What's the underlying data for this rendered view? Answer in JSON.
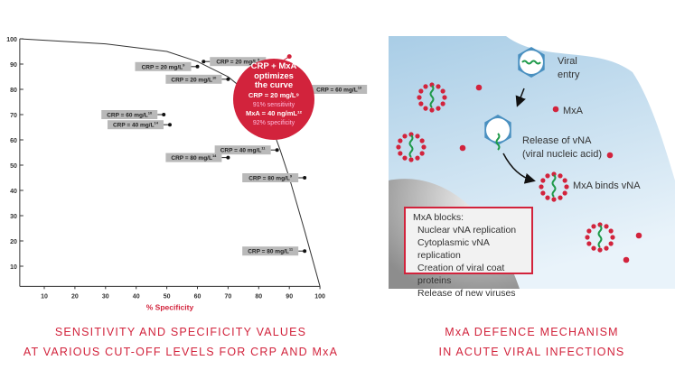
{
  "chart_data": {
    "type": "scatter",
    "xlabel": "% Specificity",
    "ylabel": "",
    "xlim": [
      2,
      100
    ],
    "ylim": [
      2,
      100
    ],
    "xticks": [
      10,
      20,
      30,
      40,
      50,
      60,
      70,
      80,
      90,
      100
    ],
    "yticks": [
      10,
      20,
      30,
      40,
      50,
      60,
      70,
      80,
      90,
      100
    ],
    "curve": [
      [
        2,
        100
      ],
      [
        30,
        98
      ],
      [
        50,
        95
      ],
      [
        60,
        91
      ],
      [
        70,
        85
      ],
      [
        78,
        77
      ],
      [
        84,
        66
      ],
      [
        87,
        56
      ],
      [
        90,
        45
      ],
      [
        95,
        24
      ],
      [
        100,
        2
      ]
    ],
    "points": [
      {
        "label": "CRP = 20 mg/L",
        "ref": "9",
        "x": 62,
        "y": 91,
        "side": "right"
      },
      {
        "label": "CRP = 20 mg/L",
        "ref": "9",
        "x": 60,
        "y": 89,
        "side": "left"
      },
      {
        "label": "CRP = 20 mg/L",
        "ref": "10",
        "x": 70,
        "y": 84,
        "side": "left"
      },
      {
        "label": "CRP = 60 mg/L",
        "ref": "13",
        "x": 95,
        "y": 80,
        "side": "right"
      },
      {
        "label": "CRP = 60 mg/L",
        "ref": "10",
        "x": 49,
        "y": 70,
        "side": "left"
      },
      {
        "label": "CRP = 40 mg/L",
        "ref": "14",
        "x": 51,
        "y": 66,
        "side": "left"
      },
      {
        "label": "CRP = 40 mg/L",
        "ref": "11",
        "x": 86,
        "y": 56,
        "side": "left"
      },
      {
        "label": "CRP = 80 mg/L",
        "ref": "14",
        "x": 70,
        "y": 53,
        "side": "left"
      },
      {
        "label": "CRP = 80 mg/L",
        "ref": "9",
        "x": 95,
        "y": 45,
        "side": "left"
      },
      {
        "label": "CRP = 80 mg/L",
        "ref": "11",
        "x": 95,
        "y": 16,
        "side": "left"
      }
    ],
    "highlight": {
      "x": 90,
      "y": 93,
      "lines": [
        "CRP + MxA",
        "optimizes",
        "the curve",
        "CRP = 20 mg/L⁹",
        "91% sensitivity",
        "MxA = 40 ng/mL¹²",
        "92% specificity"
      ]
    },
    "title": [
      "SENSITIVITY AND SPECIFICITY VALUES",
      "AT VARIOUS CUT-OFF LEVELS FOR CRP AND MxA"
    ]
  },
  "colors": {
    "accent": "#d2233c",
    "label_bg": "#b9b9b9",
    "cell": "#b8d6ea",
    "virus": "#4a90c0",
    "rna": "#1f9a4a"
  },
  "diagram": {
    "viral_entry": [
      "Viral",
      "entry"
    ],
    "mxa": "MxA",
    "release": [
      "Release of vNA",
      "(viral nucleic acid)"
    ],
    "binds": "MxA binds vNA",
    "blocks_title": "MxA blocks:",
    "blocks": [
      "Nuclear vNA replication",
      "Cytoplasmic vNA replication",
      "Creation of viral coat proteins",
      "Release of new viruses"
    ],
    "title": [
      "MxA DEFENCE MECHANISM",
      "IN ACUTE VIRAL INFECTIONS"
    ]
  }
}
